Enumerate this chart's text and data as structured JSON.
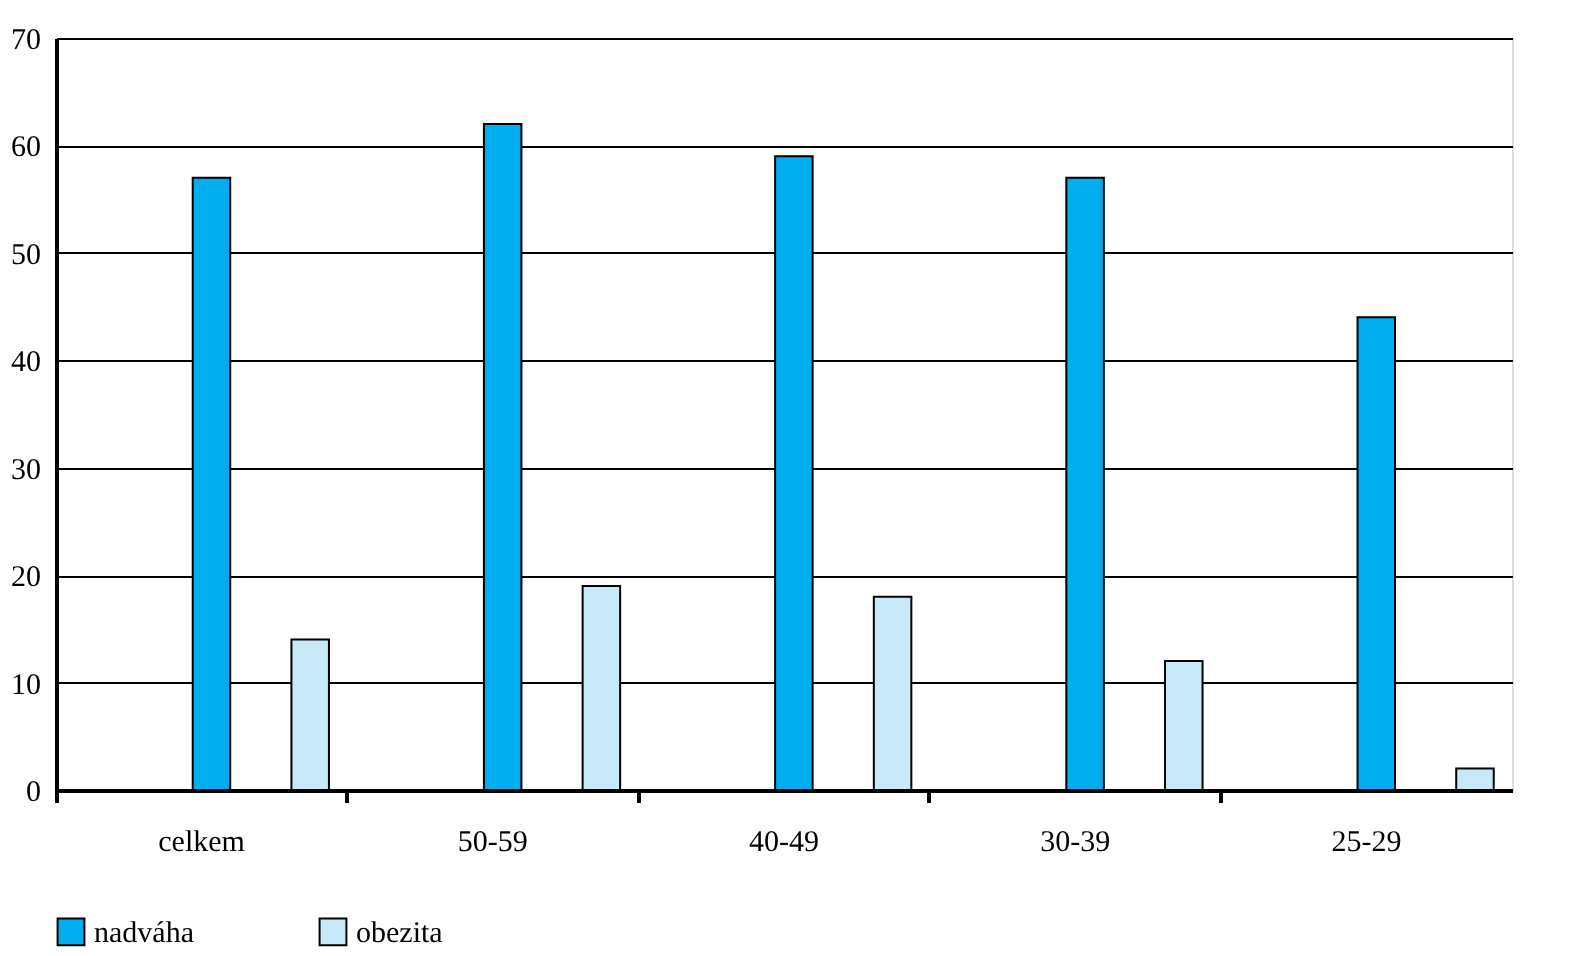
{
  "chart_data": {
    "type": "bar",
    "categories": [
      "celkem",
      "50-59",
      "40-49",
      "30-39",
      "25-29"
    ],
    "series": [
      {
        "name": "nadváha",
        "color": "#00aeef",
        "values": [
          57,
          62,
          59,
          57,
          44
        ]
      },
      {
        "name": "obezita",
        "color": "#c8e9f8",
        "values": [
          14,
          19,
          18,
          12,
          2
        ]
      }
    ],
    "ylim": [
      0,
      70
    ],
    "yticks": [
      0,
      10,
      20,
      30,
      40,
      50,
      60,
      70
    ],
    "grid": "y",
    "legend": "bottom"
  }
}
